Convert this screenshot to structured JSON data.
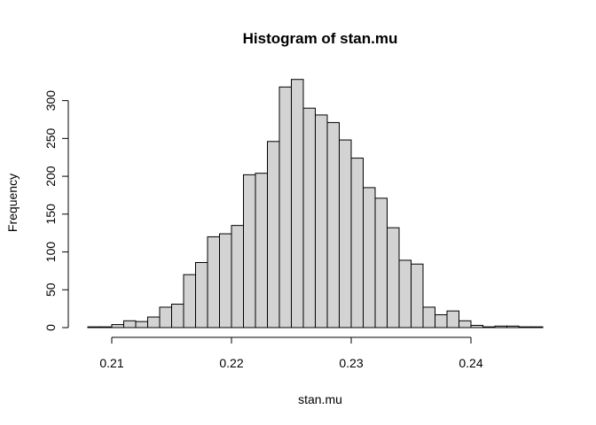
{
  "chart_data": {
    "type": "bar",
    "title": "Histogram of stan.mu",
    "xlabel": "stan.mu",
    "ylabel": "Frequency",
    "bar_color": "#d3d3d3",
    "edge_color": "#000000",
    "bin_width": 0.001,
    "bin_edges_start": 0.208,
    "values": [
      1,
      1,
      4,
      9,
      8,
      14,
      27,
      31,
      70,
      86,
      120,
      124,
      135,
      202,
      204,
      246,
      318,
      328,
      290,
      281,
      271,
      248,
      224,
      185,
      171,
      132,
      89,
      84,
      27,
      17,
      22,
      9,
      3,
      1,
      2,
      2,
      1,
      1
    ],
    "xlim": [
      0.208,
      0.246
    ],
    "ylim": [
      0,
      330
    ],
    "x_ticks": [
      0.21,
      0.22,
      0.23,
      0.24
    ],
    "x_tick_labels": [
      "0.21",
      "0.22",
      "0.23",
      "0.24"
    ],
    "y_ticks": [
      0,
      50,
      100,
      150,
      200,
      250,
      300
    ],
    "y_tick_labels": [
      "0",
      "50",
      "100",
      "150",
      "200",
      "250",
      "300"
    ],
    "grid": false
  }
}
